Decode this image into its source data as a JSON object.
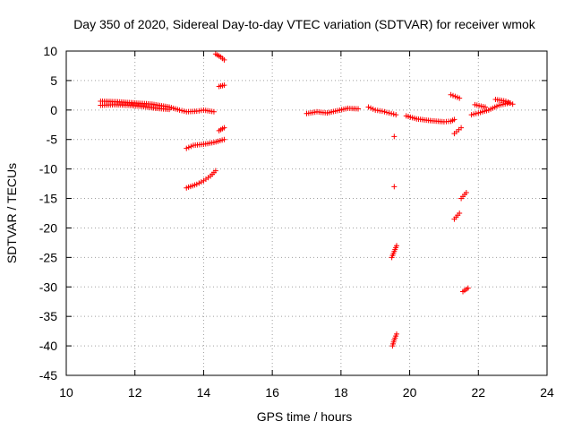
{
  "chart_data": {
    "type": "scatter",
    "title": "Day 350 of 2020, Sidereal Day-to-day VTEC variation (SDTVAR) for receiver wmok",
    "xlabel": "GPS time / hours",
    "ylabel": "SDTVAR / TECUs",
    "xlim": [
      10,
      24
    ],
    "ylim": [
      -45,
      10
    ],
    "xticks": [
      10,
      12,
      14,
      16,
      18,
      20,
      22,
      24
    ],
    "yticks": [
      -45,
      -40,
      -35,
      -30,
      -25,
      -20,
      -15,
      -10,
      -5,
      0,
      5,
      10
    ],
    "grid": true,
    "marker": "+",
    "color": "#ff0000",
    "series": [
      {
        "name": "SDTVAR",
        "segments": [
          {
            "x": [
              11.0,
              11.5,
              12.0,
              12.5,
              13.0,
              13.3,
              13.5,
              13.8,
              14.0,
              14.3
            ],
            "y": [
              1.5,
              1.4,
              1.2,
              1.0,
              0.5,
              0.0,
              -0.3,
              -0.2,
              0.0,
              -0.3
            ]
          },
          {
            "x": [
              11.0,
              11.4,
              11.8,
              12.2,
              12.6,
              13.0
            ],
            "y": [
              0.8,
              0.9,
              0.8,
              0.6,
              0.3,
              0.1
            ]
          },
          {
            "x": [
              14.35,
              14.5,
              14.6
            ],
            "y": [
              9.5,
              9.0,
              8.5
            ]
          },
          {
            "x": [
              14.45,
              14.6
            ],
            "y": [
              4.0,
              4.2
            ]
          },
          {
            "x": [
              13.5,
              13.7,
              14.0,
              14.3,
              14.6
            ],
            "y": [
              -6.5,
              -6.0,
              -5.8,
              -5.5,
              -5.0
            ]
          },
          {
            "x": [
              14.45,
              14.6
            ],
            "y": [
              -3.5,
              -3.0
            ]
          },
          {
            "x": [
              13.5,
              13.8,
              14.0,
              14.2,
              14.35
            ],
            "y": [
              -13.2,
              -12.6,
              -12.0,
              -11.2,
              -10.3
            ]
          },
          {
            "x": [
              17.0,
              17.3,
              17.6,
              17.9,
              18.2,
              18.5
            ],
            "y": [
              -0.6,
              -0.3,
              -0.5,
              -0.1,
              0.3,
              0.2
            ]
          },
          {
            "x": [
              18.8,
              19.0,
              19.2,
              19.4,
              19.6
            ],
            "y": [
              0.5,
              0.0,
              -0.2,
              -0.5,
              -0.8
            ]
          },
          {
            "x": [
              19.9,
              20.2,
              20.6,
              21.0,
              21.2,
              21.3
            ],
            "y": [
              -1.0,
              -1.5,
              -1.8,
              -2.0,
              -1.9,
              -1.6
            ]
          },
          {
            "x": [
              21.2,
              21.45
            ],
            "y": [
              2.6,
              2.0
            ]
          },
          {
            "x": [
              21.3,
              21.5
            ],
            "y": [
              -4.0,
              -3.0
            ]
          },
          {
            "x": [
              21.8,
              22.0,
              22.3,
              22.6,
              22.9
            ],
            "y": [
              -0.8,
              -0.5,
              0.0,
              0.8,
              1.2
            ]
          },
          {
            "x": [
              21.9,
              22.2
            ],
            "y": [
              0.9,
              0.5
            ]
          },
          {
            "x": [
              22.5,
              22.8,
              23.0
            ],
            "y": [
              1.8,
              1.5,
              1.0
            ]
          },
          {
            "x": [
              19.55
            ],
            "y": [
              -4.5
            ]
          },
          {
            "x": [
              19.55
            ],
            "y": [
              -13.0
            ]
          },
          {
            "x": [
              19.48,
              19.55,
              19.62
            ],
            "y": [
              -25.0,
              -24.0,
              -23.0
            ]
          },
          {
            "x": [
              19.5,
              19.55,
              19.62
            ],
            "y": [
              -40.0,
              -39.0,
              -38.0
            ]
          },
          {
            "x": [
              21.5,
              21.65
            ],
            "y": [
              -15.0,
              -14.0
            ]
          },
          {
            "x": [
              21.3,
              21.45
            ],
            "y": [
              -18.5,
              -17.5
            ]
          },
          {
            "x": [
              21.55,
              21.7
            ],
            "y": [
              -30.8,
              -30.2
            ]
          }
        ]
      }
    ]
  }
}
